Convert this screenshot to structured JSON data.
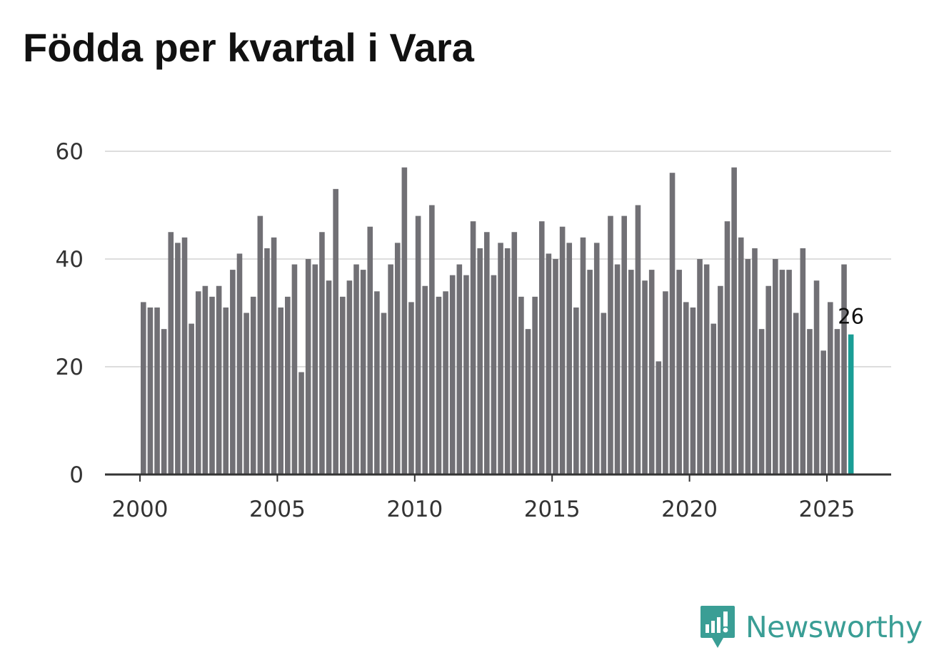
{
  "chart_data": {
    "type": "bar",
    "title": "Födda per kvartal i Vara",
    "xlabel": "",
    "ylabel": "",
    "ylim": [
      0,
      60
    ],
    "y_ticks": [
      0,
      20,
      40,
      60
    ],
    "x_ticks": [
      "2000",
      "2005",
      "2010",
      "2015",
      "2020",
      "2025"
    ],
    "grid": true,
    "bar_color": "#717075",
    "highlight_color": "#1a9e96",
    "highlight_label": "26",
    "categories": [
      "2000K1",
      "2000K2",
      "2000K3",
      "2000K4",
      "2001K1",
      "2001K2",
      "2001K3",
      "2001K4",
      "2002K1",
      "2002K2",
      "2002K3",
      "2002K4",
      "2003K1",
      "2003K2",
      "2003K3",
      "2003K4",
      "2004K1",
      "2004K2",
      "2004K3",
      "2004K4",
      "2005K1",
      "2005K2",
      "2005K3",
      "2005K4",
      "2006K1",
      "2006K2",
      "2006K3",
      "2006K4",
      "2007K1",
      "2007K2",
      "2007K3",
      "2007K4",
      "2008K1",
      "2008K2",
      "2008K3",
      "2008K4",
      "2009K1",
      "2009K2",
      "2009K3",
      "2009K4",
      "2010K1",
      "2010K2",
      "2010K3",
      "2010K4",
      "2011K1",
      "2011K2",
      "2011K3",
      "2011K4",
      "2012K1",
      "2012K2",
      "2012K3",
      "2012K4",
      "2013K1",
      "2013K2",
      "2013K3",
      "2013K4",
      "2014K1",
      "2014K2",
      "2014K3",
      "2014K4",
      "2015K1",
      "2015K2",
      "2015K3",
      "2015K4",
      "2016K1",
      "2016K2",
      "2016K3",
      "2016K4",
      "2017K1",
      "2017K2",
      "2017K3",
      "2017K4",
      "2018K1",
      "2018K2",
      "2018K3",
      "2018K4",
      "2019K1",
      "2019K2",
      "2019K3",
      "2019K4",
      "2020K1",
      "2020K2",
      "2020K3",
      "2020K4",
      "2021K1",
      "2021K2",
      "2021K3",
      "2021K4",
      "2022K1",
      "2022K2",
      "2022K3",
      "2022K4",
      "2023K1",
      "2023K2",
      "2023K3",
      "2023K4",
      "2024K1",
      "2024K2",
      "2024K3",
      "2024K4",
      "2025K1",
      "2025K2",
      "2025K3",
      "2025K4"
    ],
    "values": [
      32,
      31,
      31,
      27,
      45,
      43,
      44,
      28,
      34,
      35,
      33,
      35,
      31,
      38,
      41,
      30,
      33,
      48,
      42,
      44,
      31,
      33,
      39,
      19,
      40,
      39,
      45,
      36,
      53,
      33,
      36,
      39,
      38,
      46,
      34,
      30,
      39,
      43,
      57,
      32,
      48,
      35,
      50,
      33,
      34,
      37,
      39,
      37,
      47,
      42,
      45,
      37,
      43,
      42,
      45,
      33,
      27,
      33,
      47,
      41,
      40,
      46,
      43,
      31,
      44,
      38,
      43,
      30,
      48,
      39,
      48,
      38,
      50,
      36,
      38,
      21,
      34,
      56,
      38,
      32,
      31,
      40,
      39,
      28,
      35,
      47,
      57,
      44,
      40,
      42,
      27,
      35,
      40,
      38,
      38,
      30,
      42,
      27,
      36,
      23,
      32,
      27,
      39,
      26
    ]
  },
  "branding": {
    "name": "Newsworthy",
    "icon": "newsworthy-logo-icon",
    "color": "#3a9e95"
  }
}
